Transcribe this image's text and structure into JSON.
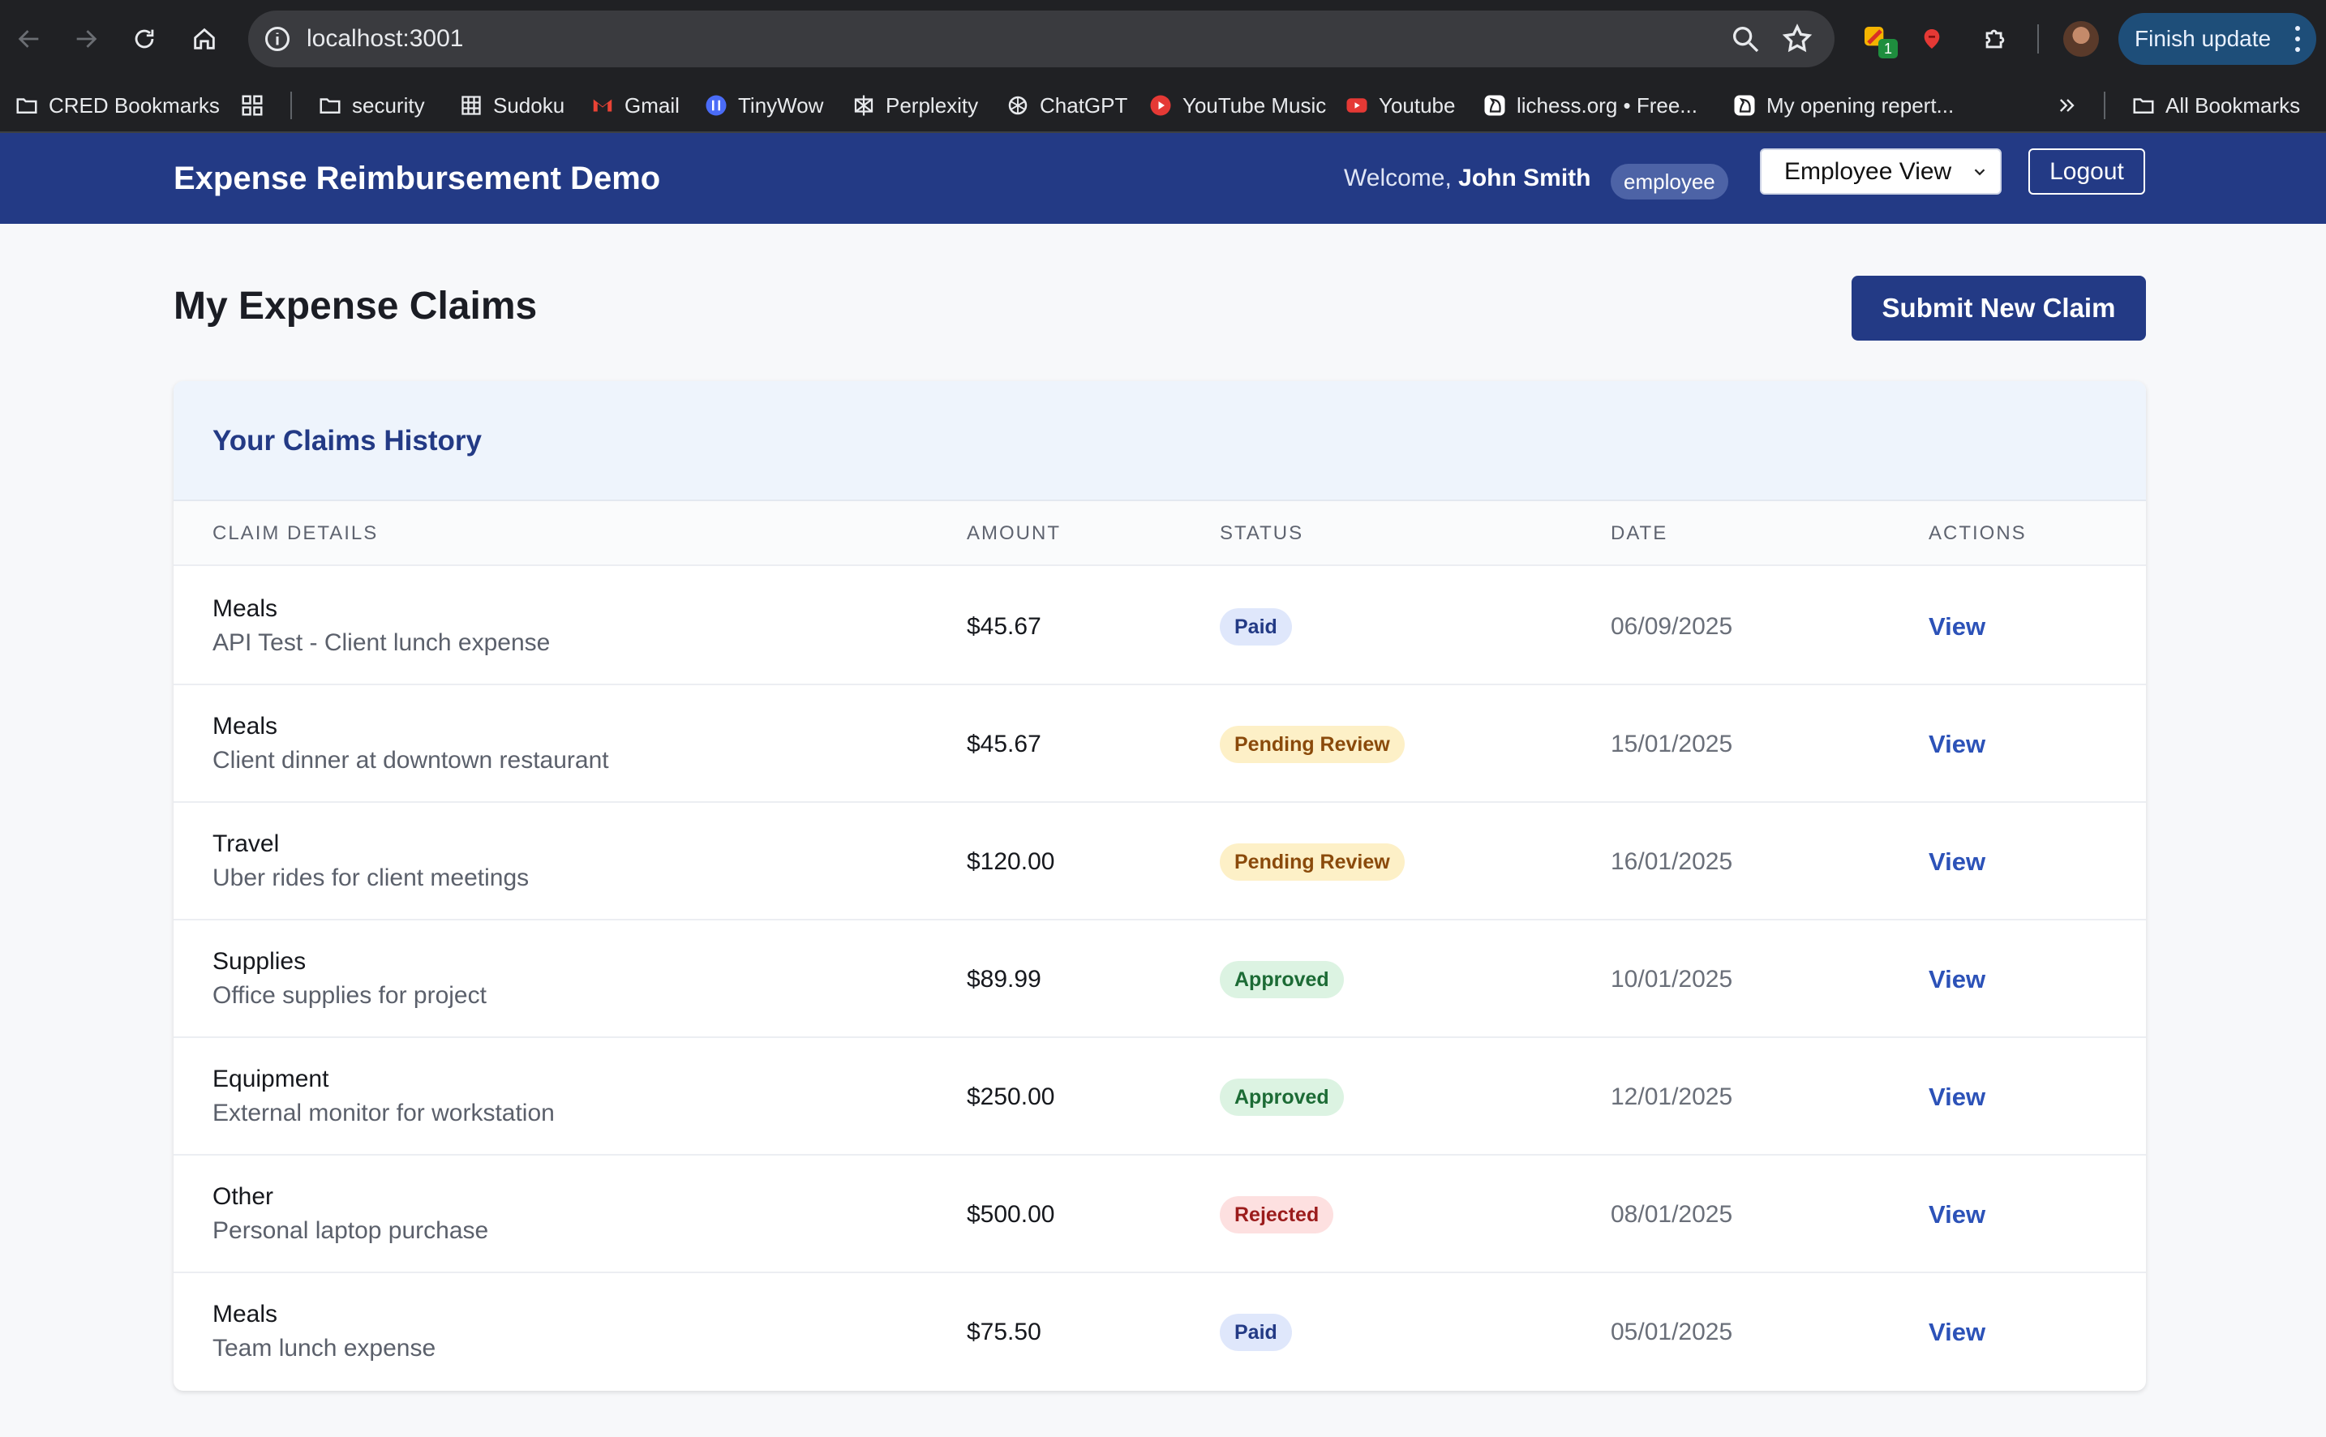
{
  "browser": {
    "url": "localhost:3001",
    "finish_update": "Finish update",
    "extension_badge": "1",
    "bookmarks": [
      {
        "label": "CRED Bookmarks",
        "icon": "bookmark-folder-icon"
      },
      {
        "label": "security",
        "icon": "folder-icon"
      },
      {
        "label": "Sudoku",
        "icon": "sudoku-icon"
      },
      {
        "label": "Gmail",
        "icon": "gmail-icon"
      },
      {
        "label": "TinyWow",
        "icon": "tinywow-icon"
      },
      {
        "label": "Perplexity",
        "icon": "perplexity-icon"
      },
      {
        "label": "ChatGPT",
        "icon": "chatgpt-icon"
      },
      {
        "label": "YouTube Music",
        "icon": "youtube-music-icon"
      },
      {
        "label": "Youtube",
        "icon": "youtube-icon"
      },
      {
        "label": "lichess.org • Free...",
        "icon": "lichess-icon"
      },
      {
        "label": "My opening repert...",
        "icon": "lichess-icon"
      }
    ],
    "all_bookmarks": "All Bookmarks"
  },
  "header": {
    "app_title": "Expense Reimbursement Demo",
    "welcome_prefix": "Welcome,",
    "user_name": "John Smith",
    "role": "employee",
    "view_select": "Employee View",
    "logout": "Logout"
  },
  "page": {
    "title": "My Expense Claims",
    "submit_button": "Submit New Claim"
  },
  "claims": {
    "section_title": "Your Claims History",
    "columns": [
      "Claim Details",
      "Amount",
      "Status",
      "Date",
      "Actions"
    ],
    "rows": [
      {
        "category": "Meals",
        "description": "API Test - Client lunch expense",
        "amount": "$45.67",
        "status": "Paid",
        "date": "06/09/2025",
        "action": "View"
      },
      {
        "category": "Meals",
        "description": "Client dinner at downtown restaurant",
        "amount": "$45.67",
        "status": "Pending Review",
        "date": "15/01/2025",
        "action": "View"
      },
      {
        "category": "Travel",
        "description": "Uber rides for client meetings",
        "amount": "$120.00",
        "status": "Pending Review",
        "date": "16/01/2025",
        "action": "View"
      },
      {
        "category": "Supplies",
        "description": "Office supplies for project",
        "amount": "$89.99",
        "status": "Approved",
        "date": "10/01/2025",
        "action": "View"
      },
      {
        "category": "Equipment",
        "description": "External monitor for workstation",
        "amount": "$250.00",
        "status": "Approved",
        "date": "12/01/2025",
        "action": "View"
      },
      {
        "category": "Other",
        "description": "Personal laptop purchase",
        "amount": "$500.00",
        "status": "Rejected",
        "date": "08/01/2025",
        "action": "View"
      },
      {
        "category": "Meals",
        "description": "Team lunch expense",
        "amount": "$75.50",
        "status": "Paid",
        "date": "05/01/2025",
        "action": "View"
      }
    ]
  },
  "colors": {
    "brand": "#233a85",
    "link": "#2c52b8",
    "status": {
      "Paid": {
        "bg": "#dfe7fb",
        "fg": "#233a85"
      },
      "Pending Review": {
        "bg": "#fdf0c7",
        "fg": "#8a4a0b"
      },
      "Approved": {
        "bg": "#dcf3e2",
        "fg": "#1c6b35"
      },
      "Rejected": {
        "bg": "#fde0e0",
        "fg": "#9b1c1c"
      }
    }
  }
}
